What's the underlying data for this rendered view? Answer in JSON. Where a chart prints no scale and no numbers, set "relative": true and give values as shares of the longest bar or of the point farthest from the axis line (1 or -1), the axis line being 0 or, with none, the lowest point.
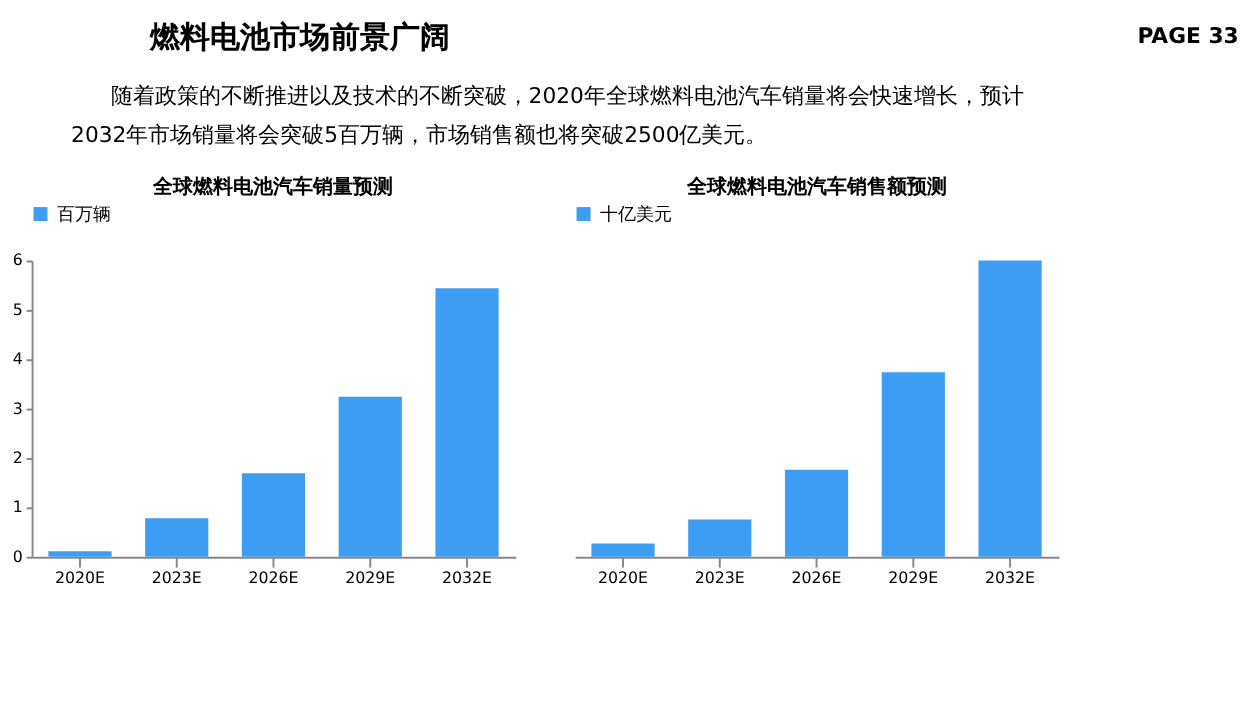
{
  "chart_data": [
    {
      "type": "other",
      "title": "燃料电池市场前景广阔",
      "subtitle": "随着政策的不断推进以及技术的不断突破，2020年全球燃料电池汽车销量将会快速增长，预计2032年市场销量将会突破5百万辆，市场销售额也将突破2500亿美元。",
      "annotations": [
        "PAGE 33"
      ]
    },
    {
      "type": "bar",
      "title": "全球燃料电池汽车销量预测",
      "categories": [
        "2020E",
        "2023E",
        "2026E",
        "2029E",
        "2032E"
      ],
      "series": [
        {
          "name": "百万辆",
          "color": "#3d9df2",
          "values": [
            0.11,
            0.78,
            1.69,
            3.24,
            5.44
          ]
        }
      ],
      "ylim": [
        0,
        6
      ],
      "yticks": [
        0,
        1,
        2,
        3,
        4,
        5,
        6
      ],
      "grid": false,
      "legend": "top"
    },
    {
      "type": "bar",
      "title": "全球燃料电池汽车销售额预测",
      "categories": [
        "2020E",
        "2023E",
        "2026E",
        "2029E",
        "2032E"
      ],
      "series": [
        {
          "name": "十亿美元",
          "color": "#3d9df2",
          "values": [
            0.045,
            0.126,
            0.294,
            0.623,
            1
          ]
        }
      ],
      "relative": true,
      "legend": "top"
    }
  ]
}
